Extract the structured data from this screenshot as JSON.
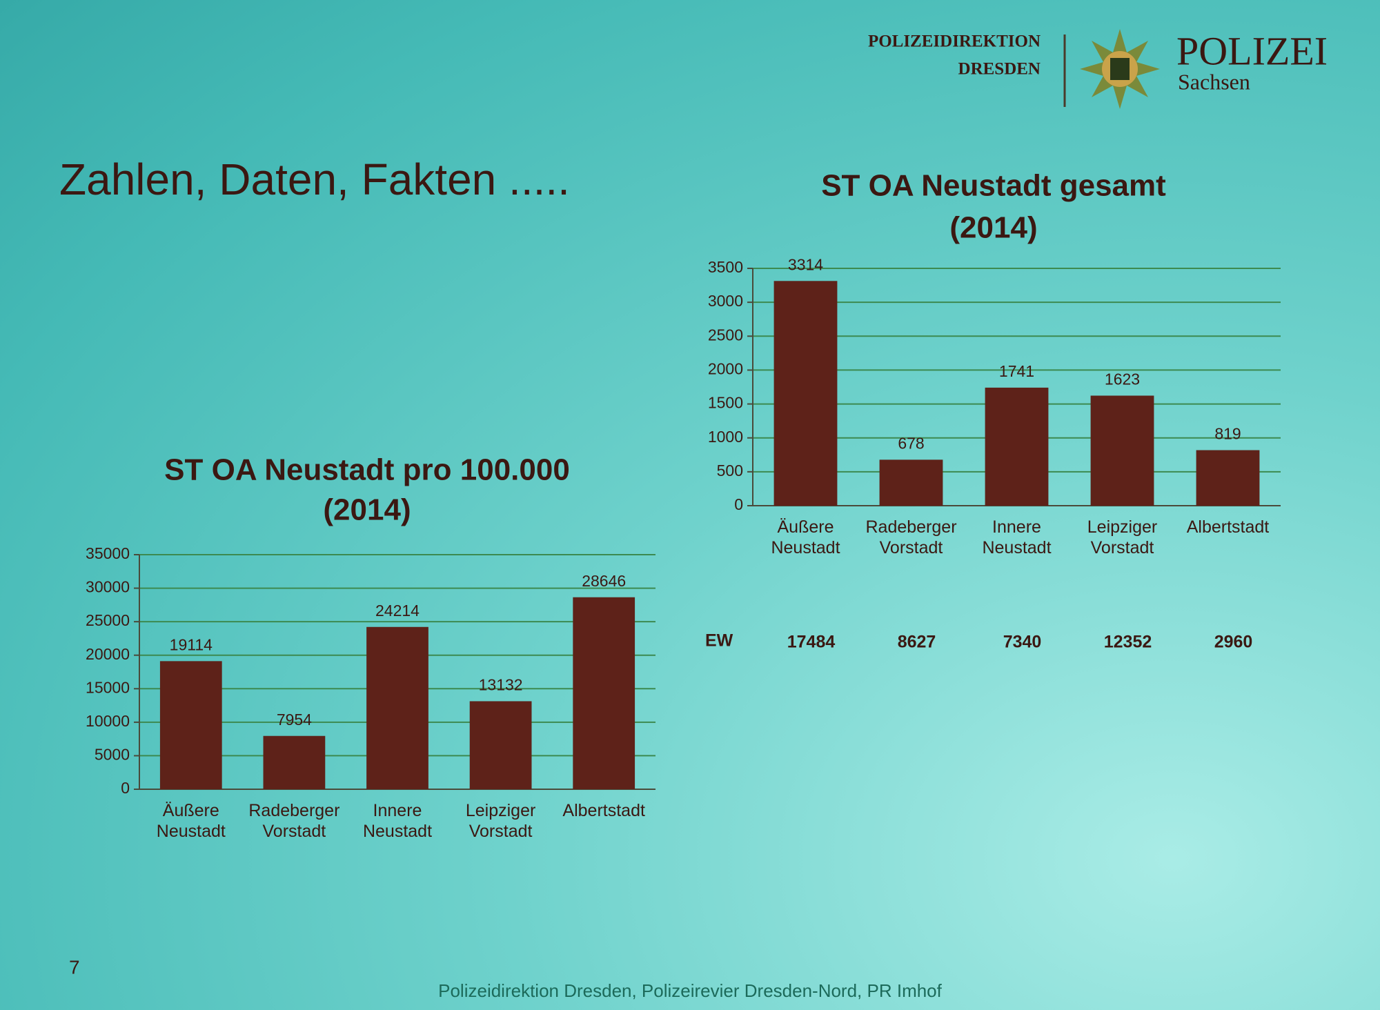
{
  "slide": {
    "header": {
      "org_line1": "POLIZEIDIREKTION",
      "org_line2": "DRESDEN",
      "brand": "POLIZEI",
      "brand_sub": "Sachsen"
    },
    "title": "Zahlen, Daten, Fakten .....",
    "ew": {
      "label": "EW",
      "values": [
        17484,
        8627,
        7340,
        12352,
        2960
      ]
    },
    "page_number": "7",
    "footer": "Polizeidirektion Dresden, Polizeirevier Dresden-Nord, PR Imhof"
  },
  "chart_data": [
    {
      "type": "bar",
      "title": "ST OA Neustadt gesamt",
      "subtitle": "(2014)",
      "categories": [
        "Äußere Neustadt",
        "Radeberger Vorstadt",
        "Innere Neustadt",
        "Leipziger Vorstadt",
        "Albertstadt"
      ],
      "values": [
        3314,
        678,
        1741,
        1623,
        819
      ],
      "color": "#5e2219",
      "ylim": [
        0,
        3500
      ],
      "yticks": [
        0,
        500,
        1000,
        1500,
        2000,
        2500,
        3000,
        3500
      ],
      "grid": true
    },
    {
      "type": "bar",
      "title": "ST OA Neustadt pro 100.000",
      "subtitle": "(2014)",
      "categories": [
        "Äußere Neustadt",
        "Radeberger Vorstadt",
        "Innere Neustadt",
        "Leipziger Vorstadt",
        "Albertstadt"
      ],
      "values": [
        19114,
        7954,
        24214,
        13132,
        28646
      ],
      "color": "#5e2219",
      "ylim": [
        0,
        35000
      ],
      "yticks": [
        0,
        5000,
        10000,
        15000,
        20000,
        25000,
        30000,
        35000
      ],
      "grid": true
    }
  ]
}
